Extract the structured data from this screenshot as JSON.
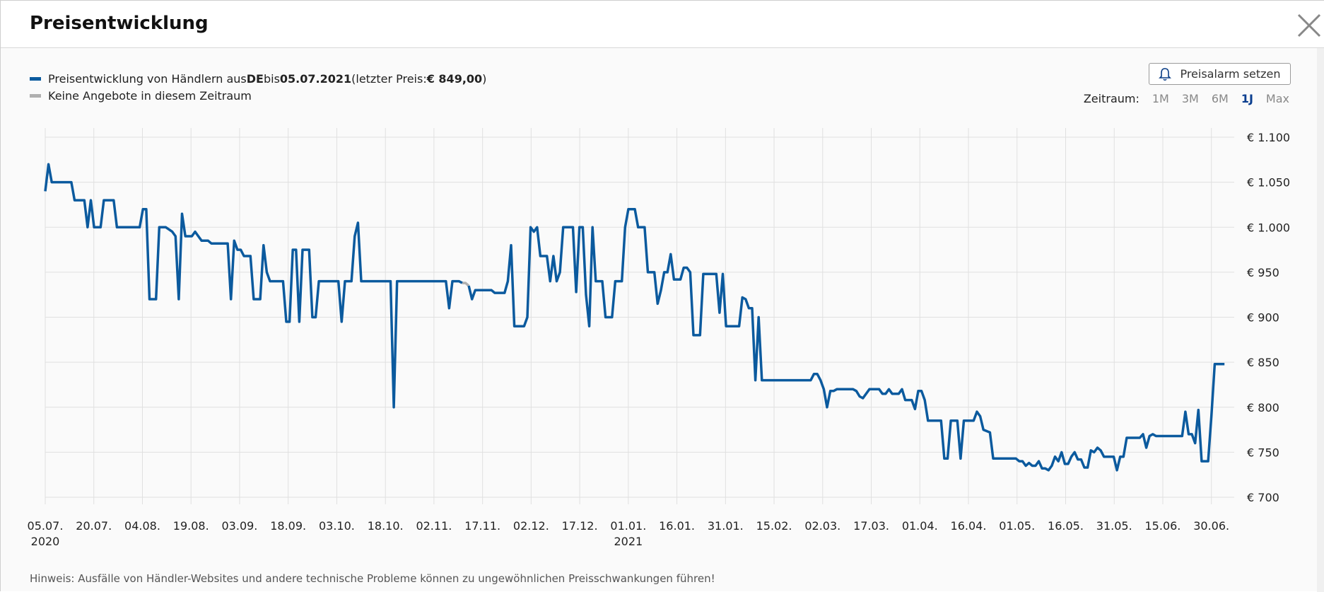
{
  "modal": {
    "title": "Preisentwicklung",
    "close_icon": "close-icon"
  },
  "legend": {
    "primary_prefix": "Preisentwicklung von Händlern aus ",
    "primary_country": "DE",
    "primary_mid": " bis ",
    "primary_date": "05.07.2021",
    "primary_lastprice_prefix": " (letzter Preis: ",
    "primary_lastprice": "€ 849,00",
    "primary_suffix": ")",
    "secondary": "Keine Angebote in diesem Zeitraum",
    "primary_color": "#0b5a9e",
    "secondary_color": "#b0b0b0"
  },
  "alarm_button": {
    "label": "Preisalarm setzen",
    "icon": "bell-icon"
  },
  "timerange": {
    "label": "Zeitraum:",
    "options": [
      "1M",
      "3M",
      "6M",
      "1J",
      "Max"
    ],
    "active": "1J"
  },
  "hint": "Hinweis: Ausfälle von Händler-Websites und andere technische Probleme können zu ungewöhnlichen Preisschwankungen führen!",
  "chart_data": {
    "type": "line",
    "ylim": [
      700,
      1100
    ],
    "yticks": [
      700,
      750,
      800,
      850,
      900,
      950,
      1000,
      1050,
      1100
    ],
    "ytick_labels": [
      "€ 700",
      "€ 750",
      "€ 800",
      "€ 850",
      "€ 900",
      "€ 950",
      "€ 1.000",
      "€ 1.050",
      "€ 1.100"
    ],
    "x_tick_labels": [
      "05.07.",
      "20.07.",
      "04.08.",
      "19.08.",
      "03.09.",
      "18.09.",
      "03.10.",
      "18.10.",
      "02.11.",
      "17.11.",
      "02.12.",
      "17.12.",
      "01.01.",
      "16.01.",
      "31.01.",
      "15.02.",
      "02.03.",
      "17.03.",
      "01.04.",
      "16.04.",
      "01.05.",
      "16.05.",
      "31.05.",
      "15.06.",
      "30.06."
    ],
    "year_labels": [
      {
        "at": "05.07.",
        "label": "2020"
      },
      {
        "at": "01.01.",
        "label": "2021"
      }
    ],
    "x_range_days": [
      0,
      365
    ],
    "grid": true,
    "series": [
      {
        "color": "#0b5a9e",
        "points": [
          [
            0,
            1040
          ],
          [
            1,
            1070
          ],
          [
            2,
            1050
          ],
          [
            8,
            1050
          ],
          [
            9,
            1030
          ],
          [
            12,
            1030
          ],
          [
            13,
            1000
          ],
          [
            14,
            1030
          ],
          [
            15,
            1000
          ],
          [
            17,
            1000
          ],
          [
            18,
            1030
          ],
          [
            21,
            1030
          ],
          [
            22,
            1000
          ],
          [
            29,
            1000
          ],
          [
            30,
            1020
          ],
          [
            31,
            1020
          ],
          [
            32,
            920
          ],
          [
            34,
            920
          ],
          [
            35,
            1000
          ],
          [
            37,
            1000
          ],
          [
            39,
            995
          ],
          [
            40,
            990
          ],
          [
            41,
            920
          ],
          [
            42,
            1015
          ],
          [
            43,
            990
          ],
          [
            45,
            990
          ],
          [
            46,
            995
          ],
          [
            47,
            990
          ],
          [
            48,
            985
          ],
          [
            50,
            985
          ],
          [
            51,
            982
          ],
          [
            56,
            982
          ],
          [
            57,
            920
          ],
          [
            58,
            985
          ],
          [
            59,
            975
          ],
          [
            60,
            975
          ],
          [
            61,
            968
          ],
          [
            63,
            968
          ],
          [
            64,
            920
          ],
          [
            66,
            920
          ],
          [
            67,
            980
          ],
          [
            68,
            950
          ],
          [
            69,
            940
          ],
          [
            73,
            940
          ],
          [
            74,
            895
          ],
          [
            75,
            895
          ],
          [
            76,
            975
          ],
          [
            77,
            975
          ],
          [
            78,
            895
          ],
          [
            79,
            975
          ],
          [
            81,
            975
          ],
          [
            82,
            900
          ],
          [
            83,
            900
          ],
          [
            84,
            940
          ],
          [
            90,
            940
          ],
          [
            91,
            895
          ],
          [
            92,
            940
          ],
          [
            94,
            940
          ],
          [
            95,
            990
          ],
          [
            96,
            1005
          ],
          [
            97,
            940
          ],
          [
            106,
            940
          ],
          [
            107,
            800
          ],
          [
            108,
            940
          ],
          [
            123,
            940
          ],
          [
            124,
            910
          ],
          [
            125,
            940
          ],
          [
            127,
            940
          ],
          [
            128,
            938
          ]
        ],
        "points_2": [
          [
            130,
            935
          ],
          [
            131,
            920
          ],
          [
            132,
            930
          ],
          [
            137,
            930
          ],
          [
            138,
            927
          ],
          [
            141,
            927
          ],
          [
            142,
            940
          ],
          [
            143,
            980
          ],
          [
            144,
            890
          ],
          [
            147,
            890
          ],
          [
            148,
            900
          ],
          [
            149,
            1000
          ],
          [
            150,
            995
          ],
          [
            151,
            1000
          ],
          [
            152,
            968
          ],
          [
            154,
            968
          ],
          [
            155,
            940
          ],
          [
            156,
            968
          ],
          [
            157,
            940
          ],
          [
            158,
            950
          ],
          [
            159,
            1000
          ],
          [
            162,
            1000
          ],
          [
            163,
            928
          ],
          [
            164,
            1000
          ],
          [
            165,
            1000
          ],
          [
            166,
            925
          ],
          [
            167,
            890
          ],
          [
            168,
            1000
          ],
          [
            169,
            940
          ],
          [
            171,
            940
          ],
          [
            172,
            900
          ],
          [
            174,
            900
          ],
          [
            175,
            940
          ],
          [
            177,
            940
          ],
          [
            178,
            1000
          ],
          [
            179,
            1020
          ],
          [
            181,
            1020
          ],
          [
            182,
            1000
          ],
          [
            184,
            1000
          ],
          [
            185,
            950
          ],
          [
            187,
            950
          ],
          [
            188,
            915
          ],
          [
            189,
            930
          ],
          [
            190,
            950
          ],
          [
            191,
            950
          ],
          [
            192,
            970
          ],
          [
            193,
            942
          ],
          [
            195,
            942
          ],
          [
            196,
            955
          ],
          [
            197,
            955
          ],
          [
            198,
            950
          ],
          [
            199,
            880
          ],
          [
            201,
            880
          ],
          [
            202,
            948
          ],
          [
            206,
            948
          ],
          [
            207,
            905
          ],
          [
            208,
            948
          ],
          [
            209,
            890
          ],
          [
            213,
            890
          ],
          [
            214,
            922
          ],
          [
            215,
            920
          ],
          [
            216,
            910
          ],
          [
            217,
            910
          ],
          [
            218,
            830
          ],
          [
            219,
            900
          ],
          [
            220,
            830
          ],
          [
            235,
            830
          ],
          [
            236,
            837
          ],
          [
            237,
            837
          ],
          [
            238,
            830
          ],
          [
            239,
            820
          ],
          [
            240,
            800
          ],
          [
            241,
            818
          ],
          [
            242,
            818
          ],
          [
            243,
            820
          ],
          [
            248,
            820
          ],
          [
            249,
            818
          ],
          [
            250,
            812
          ],
          [
            251,
            810
          ],
          [
            253,
            820
          ],
          [
            256,
            820
          ],
          [
            257,
            815
          ],
          [
            258,
            815
          ],
          [
            259,
            820
          ],
          [
            260,
            815
          ],
          [
            262,
            815
          ],
          [
            263,
            820
          ],
          [
            264,
            808
          ],
          [
            266,
            808
          ],
          [
            267,
            798
          ],
          [
            268,
            818
          ],
          [
            269,
            818
          ],
          [
            270,
            808
          ],
          [
            271,
            785
          ],
          [
            275,
            785
          ],
          [
            276,
            743
          ],
          [
            277,
            743
          ],
          [
            278,
            785
          ],
          [
            280,
            785
          ],
          [
            281,
            743
          ],
          [
            282,
            785
          ],
          [
            285,
            785
          ],
          [
            286,
            795
          ],
          [
            287,
            790
          ],
          [
            288,
            775
          ],
          [
            290,
            772
          ],
          [
            291,
            743
          ],
          [
            298,
            743
          ],
          [
            299,
            740
          ],
          [
            300,
            740
          ],
          [
            301,
            735
          ],
          [
            302,
            738
          ],
          [
            303,
            735
          ],
          [
            304,
            735
          ],
          [
            305,
            740
          ],
          [
            306,
            732
          ],
          [
            307,
            732
          ],
          [
            308,
            730
          ],
          [
            309,
            735
          ],
          [
            310,
            745
          ],
          [
            311,
            740
          ],
          [
            312,
            750
          ],
          [
            313,
            737
          ],
          [
            314,
            737
          ],
          [
            315,
            745
          ],
          [
            316,
            750
          ],
          [
            317,
            742
          ],
          [
            318,
            742
          ],
          [
            319,
            733
          ],
          [
            320,
            733
          ],
          [
            321,
            752
          ],
          [
            322,
            750
          ],
          [
            323,
            755
          ],
          [
            324,
            752
          ],
          [
            325,
            745
          ],
          [
            328,
            745
          ],
          [
            329,
            730
          ],
          [
            330,
            745
          ],
          [
            331,
            745
          ],
          [
            332,
            766
          ],
          [
            336,
            766
          ],
          [
            337,
            770
          ],
          [
            338,
            755
          ],
          [
            339,
            768
          ],
          [
            340,
            770
          ],
          [
            341,
            768
          ],
          [
            349,
            768
          ],
          [
            350,
            795
          ],
          [
            351,
            770
          ],
          [
            352,
            770
          ],
          [
            353,
            760
          ],
          [
            354,
            797
          ],
          [
            355,
            740
          ],
          [
            357,
            740
          ],
          [
            358,
            790
          ],
          [
            359,
            848
          ],
          [
            362,
            848
          ]
        ],
        "gap_color": "#b0b0b0",
        "gap_points": [
          [
            128,
            938
          ],
          [
            129,
            938
          ],
          [
            130,
            935
          ]
        ]
      }
    ]
  }
}
